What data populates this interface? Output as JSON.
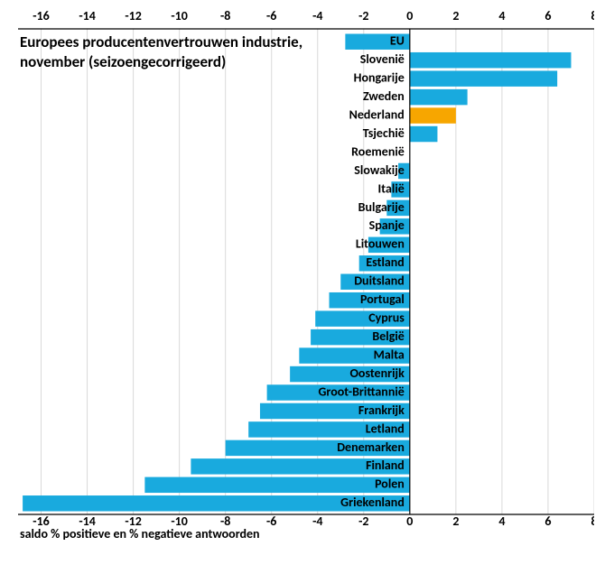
{
  "chart": {
    "type": "bar-horizontal",
    "title_line1": "Europees producentenvertrouwen industrie,",
    "title_line2": "november (seizoengecorrigeerd)",
    "title_fontsize": 17,
    "footer": "saldo % positieve en % negatieve antwoorden",
    "footer_fontsize": 14,
    "xlim": {
      "min": -17,
      "max": 8
    },
    "xticks": [
      -16,
      -14,
      -12,
      -10,
      -8,
      -6,
      -4,
      -2,
      0,
      2,
      4,
      6,
      8
    ],
    "tick_fontsize": 14,
    "bar_color_default": "#19aade",
    "bar_color_highlight": "#f7a600",
    "axis_color": "#000000",
    "grid_color": "#d9d9d9",
    "background_color": "#ffffff",
    "series": [
      {
        "label": "EU",
        "value": -2.8,
        "highlight": false
      },
      {
        "label": "Slovenië",
        "value": 7.0,
        "highlight": false
      },
      {
        "label": "Hongarije",
        "value": 6.4,
        "highlight": false
      },
      {
        "label": "Zweden",
        "value": 2.5,
        "highlight": false
      },
      {
        "label": "Nederland",
        "value": 2.0,
        "highlight": true
      },
      {
        "label": "Tsjechië",
        "value": 1.2,
        "highlight": false
      },
      {
        "label": "Roemenië",
        "value": 0.0,
        "highlight": false
      },
      {
        "label": "Slowakije",
        "value": -0.5,
        "highlight": false
      },
      {
        "label": "Italië",
        "value": -0.8,
        "highlight": false
      },
      {
        "label": "Bulgarije",
        "value": -1.0,
        "highlight": false
      },
      {
        "label": "Spanje",
        "value": -1.3,
        "highlight": false
      },
      {
        "label": "Litouwen",
        "value": -1.8,
        "highlight": false
      },
      {
        "label": "Estland",
        "value": -2.2,
        "highlight": false
      },
      {
        "label": "Duitsland",
        "value": -3.0,
        "highlight": false
      },
      {
        "label": "Portugal",
        "value": -3.5,
        "highlight": false
      },
      {
        "label": "Cyprus",
        "value": -4.1,
        "highlight": false
      },
      {
        "label": "België",
        "value": -4.3,
        "highlight": false
      },
      {
        "label": "Malta",
        "value": -4.8,
        "highlight": false
      },
      {
        "label": "Oostenrijk",
        "value": -5.2,
        "highlight": false
      },
      {
        "label": "Groot-Brittannië",
        "value": -6.2,
        "highlight": false
      },
      {
        "label": "Frankrijk",
        "value": -6.5,
        "highlight": false
      },
      {
        "label": "Letland",
        "value": -7.0,
        "highlight": false
      },
      {
        "label": "Denemarken",
        "value": -8.0,
        "highlight": false
      },
      {
        "label": "Finland",
        "value": -9.5,
        "highlight": false
      },
      {
        "label": "Polen",
        "value": -11.5,
        "highlight": false
      },
      {
        "label": "Griekenland",
        "value": -16.8,
        "highlight": false
      }
    ]
  }
}
